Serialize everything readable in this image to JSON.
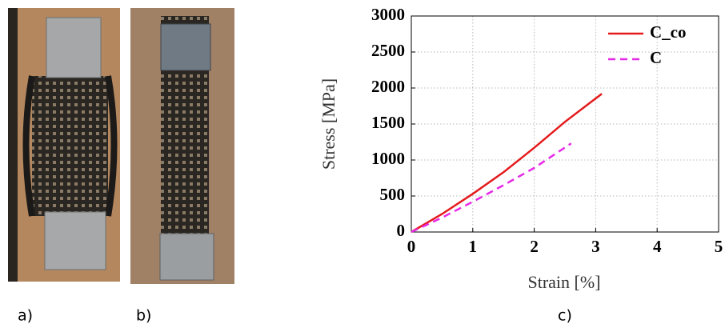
{
  "panel_labels": [
    "a)",
    "b)",
    "c)"
  ],
  "chart_data": {
    "type": "line",
    "xlabel": "Strain [%]",
    "ylabel": "Stress [MPa]",
    "xlim": [
      0,
      5
    ],
    "xticks": [
      0,
      1,
      2,
      3,
      4,
      5
    ],
    "ylim": [
      0,
      3000
    ],
    "yticks": [
      0,
      500,
      1000,
      1500,
      2000,
      2500,
      3000
    ],
    "grid": true,
    "legend": "upper right",
    "series": [
      {
        "name": "C_co",
        "color": "#e41a1c",
        "style": "solid",
        "x": [
          0,
          0.5,
          1,
          1.5,
          2,
          2.5,
          3.1
        ],
        "values": [
          0,
          250,
          530,
          830,
          1170,
          1530,
          1920
        ]
      },
      {
        "name": "C",
        "color": "#e629e6",
        "style": "dashed",
        "x": [
          0,
          0.5,
          1,
          1.5,
          2,
          2.6
        ],
        "values": [
          0,
          200,
          420,
          650,
          890,
          1230
        ]
      }
    ]
  }
}
